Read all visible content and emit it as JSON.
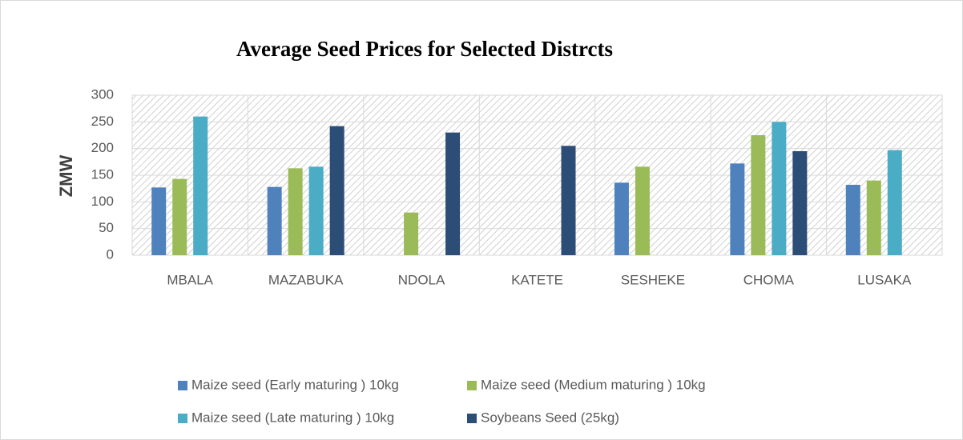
{
  "chart_data": {
    "type": "bar",
    "title": "Average Seed Prices for Selected Distrcts",
    "y_label": "ZMW",
    "categories": [
      "MBALA",
      "MAZABUKA",
      "NDOLA",
      "KATETE",
      "SESHEKE",
      "CHOMA",
      "LUSAKA"
    ],
    "series": [
      {
        "name": "Maize seed (Early maturing ) 10kg",
        "color": "#4f81bd",
        "values": [
          127,
          128,
          null,
          null,
          136,
          172,
          132
        ]
      },
      {
        "name": "Maize seed (Medium maturing ) 10kg",
        "color": "#9bbb59",
        "values": [
          143,
          163,
          80,
          null,
          166,
          225,
          140
        ]
      },
      {
        "name": "Maize seed (Late maturing ) 10kg",
        "color": "#4bacc6",
        "values": [
          260,
          166,
          null,
          null,
          null,
          250,
          197
        ]
      },
      {
        "name": "Soybeans Seed (25kg)",
        "color": "#2c4d75",
        "values": [
          null,
          242,
          230,
          205,
          null,
          195,
          null
        ]
      }
    ],
    "ylim": [
      0,
      300
    ],
    "yticks": [
      0,
      50,
      100,
      150,
      200,
      250,
      300
    ],
    "grid": true,
    "legend": "bottom"
  }
}
